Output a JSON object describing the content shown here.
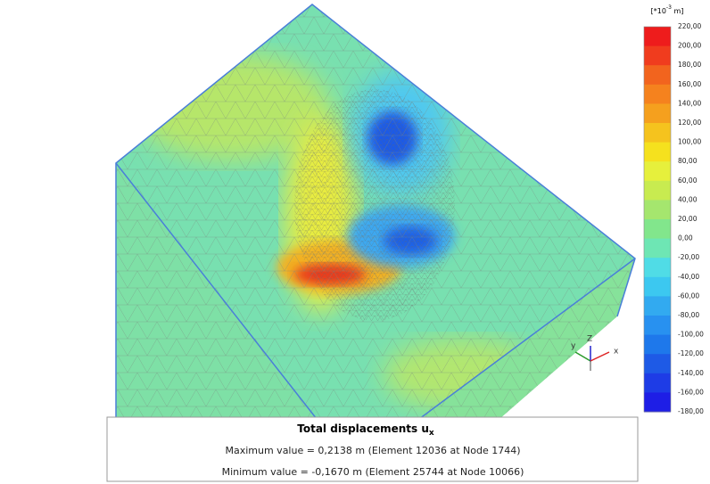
{
  "legend": {
    "unit_prefix": "[*10",
    "unit_exponent": "-3",
    "unit_suffix": " m]",
    "labels": [
      "220,00",
      "200,00",
      "180,00",
      "160,00",
      "140,00",
      "120,00",
      "100,00",
      "80,00",
      "60,00",
      "40,00",
      "20,00",
      "0,00",
      "-20,00",
      "-40,00",
      "-60,00",
      "-80,00",
      "-100,00",
      "-120,00",
      "-140,00",
      "-160,00",
      "-180,00"
    ],
    "colors": [
      "#ee1c1c",
      "#f03c1e",
      "#f2641e",
      "#f5821e",
      "#f5a01e",
      "#f5c31e",
      "#f5e11e",
      "#e6f03c",
      "#c8eb50",
      "#a5e66e",
      "#82e68c",
      "#6ee6b4",
      "#50dce6",
      "#3cc8f0",
      "#32aaf0",
      "#2891f0",
      "#1e78eb",
      "#1e5ae6",
      "#1e3ce6",
      "#1e1ee6"
    ]
  },
  "axes": {
    "y": "y",
    "z": "Z",
    "x": "x"
  },
  "info": {
    "title": "Total displacements u",
    "title_subscript": "x",
    "max_line": "Maximum value = 0,2138 m (Element 12036 at Node 1744)",
    "min_line": "Minimum value = -0,1670 m (Element 25744 at Node 10066)"
  }
}
